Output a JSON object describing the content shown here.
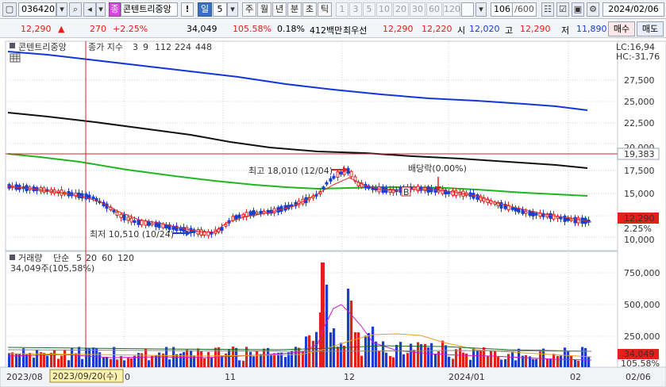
{
  "toolbar": {
    "code": "036420",
    "name_badge": "종",
    "stock_name": "콘텐트리중앙",
    "warning": "!",
    "period_day": "일",
    "period_count": "5",
    "periods": [
      "주",
      "월",
      "년",
      "분",
      "초",
      "틱"
    ],
    "intervals": [
      "1",
      "3",
      "5",
      "10",
      "20",
      "30",
      "60",
      "120"
    ],
    "bar_count": "106",
    "bar_total": "/600",
    "date": "2024/02/06"
  },
  "quote": {
    "price": "12,290",
    "arrow": "▲",
    "change": "270",
    "change_pct": "+2.25%",
    "volume": "34,049",
    "volume_ratio": "105.58%",
    "turnover_rate": "0.18%",
    "amount": "412백만",
    "bid_label": "최우선",
    "best_ask": "12,290",
    "best_bid": "12,220",
    "open_label": "시",
    "open": "12,020",
    "high_label": "고",
    "high": "12,290",
    "low_label": "저",
    "low": "11,890",
    "buy_button": "매수",
    "sell_button": "매도"
  },
  "price_panel": {
    "stock_label": "콘텐트리중앙",
    "indicator_label": "종가 지수",
    "ma_periods": [
      {
        "label": "3",
        "color": "#e02c2c"
      },
      {
        "label": "9",
        "color": "#e02c2c"
      },
      {
        "label": "112",
        "color": "#22b522"
      },
      {
        "label": "224",
        "color": "#111111"
      },
      {
        "label": "448",
        "color": "#1436d8"
      }
    ],
    "lc_label": "LC:16,94",
    "hc_label": "HC:-31,76",
    "y_ticks": [
      "27,500",
      "25,000",
      "22,500",
      "20,000",
      "17,500",
      "15,000",
      "12,500",
      "10,000"
    ],
    "crosshair_price": "19,383",
    "last_price_tag": "12,290",
    "last_pct_tag": "2.25%",
    "high_annotation": "최고 18,010 (12/04)",
    "low_annotation": "최저 10,510 (10/24)",
    "dividend_annotation": "배당락(0.00%)",
    "dividend_badge": "B"
  },
  "volume_panel": {
    "title": "거래량",
    "ma_label": "단순",
    "ma_periods": [
      {
        "label": "5",
        "color": "#c81fc8"
      },
      {
        "label": "20",
        "color": "#e6a11a"
      },
      {
        "label": "60",
        "color": "#1a6b2a"
      },
      {
        "label": "120",
        "color": "#888888"
      }
    ],
    "volume_readout": "34,049주(105,58%)",
    "y_ticks": [
      "750,000",
      "500,000",
      "250,000"
    ],
    "volume_tag": "34,049",
    "pct_tag": "105.58%"
  },
  "x_axis": {
    "labels": [
      "2023/08",
      "0",
      "11",
      "12",
      "2024/01",
      "02",
      "02/06"
    ],
    "crosshair_date": "2023/09/20(수)"
  },
  "colors": {
    "up": "#e2211c",
    "down": "#1a3fd0",
    "ma448": "#1436d8",
    "ma224": "#111111",
    "ma112": "#22b522",
    "ma9": "#e02c2c",
    "vol_ma5": "#c81fc8",
    "vol_ma20": "#e6a11a",
    "vol_ma60": "#1a6b2a",
    "crosshair": "#d42020",
    "tag_red": "#e2211c"
  },
  "chart_data": {
    "type": "line",
    "title": "",
    "xlabel": "",
    "ylabel": "",
    "ylim": [
      9000,
      30000
    ],
    "x": [
      "2023/08",
      "2023/09",
      "2023/10",
      "2023/11",
      "2023/12",
      "2024/01",
      "2024/02"
    ],
    "series": [
      {
        "name": "448",
        "values": [
          29500,
          28300,
          27600,
          26800,
          25900,
          25200,
          24200
        ]
      },
      {
        "name": "224",
        "values": [
          23900,
          23000,
          22100,
          20900,
          19600,
          18800,
          17700
        ]
      },
      {
        "name": "112",
        "values": [
          19300,
          18300,
          16800,
          15400,
          15300,
          15200,
          14700
        ]
      },
      {
        "name": "9",
        "values": [
          15700,
          14700,
          11500,
          11500,
          16300,
          14700,
          12300
        ]
      }
    ]
  }
}
